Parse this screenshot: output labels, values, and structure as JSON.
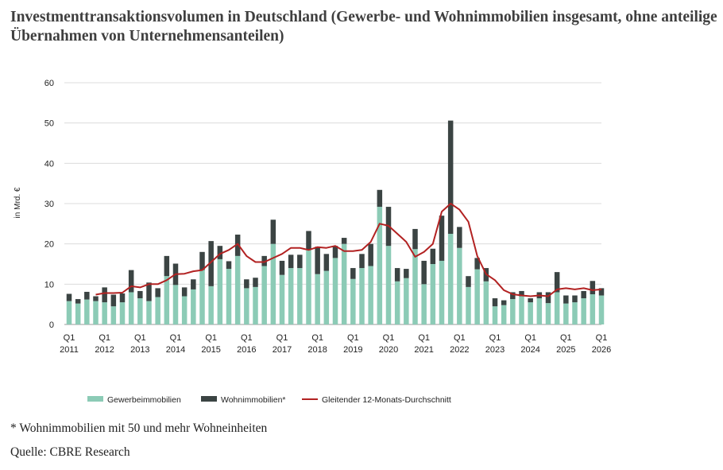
{
  "title": "Investmenttransaktionsvolumen in Deutschland (Gewerbe- und Wohnimmobilien insgesamt, ohne anteilige Übernahmen von Unternehmensanteilen)",
  "footnote": "* Wohnimmobilien mit 50 und mehr Wohneinheiten",
  "source": "Quelle: CBRE Research",
  "chart_data": {
    "type": "bar",
    "stacked": true,
    "ylabel": "in Mrd. €",
    "ylim": [
      0,
      60
    ],
    "yticks": [
      0,
      10,
      20,
      30,
      40,
      50,
      60
    ],
    "grid": true,
    "legend_position": "bottom",
    "colors": {
      "commercial": "#8ccbb6",
      "residential": "#3b4443",
      "average": "#b22222"
    },
    "x_tick_labels": [
      {
        "index": 0,
        "quarter": "Q1",
        "year": "2011"
      },
      {
        "index": 4,
        "quarter": "Q1",
        "year": "2012"
      },
      {
        "index": 8,
        "quarter": "Q1",
        "year": "2013"
      },
      {
        "index": 12,
        "quarter": "Q1",
        "year": "2014"
      },
      {
        "index": 16,
        "quarter": "Q1",
        "year": "2015"
      },
      {
        "index": 20,
        "quarter": "Q1",
        "year": "2016"
      },
      {
        "index": 24,
        "quarter": "Q1",
        "year": "2017"
      },
      {
        "index": 28,
        "quarter": "Q1",
        "year": "2018"
      },
      {
        "index": 32,
        "quarter": "Q1",
        "year": "2019"
      },
      {
        "index": 36,
        "quarter": "Q1",
        "year": "2020"
      },
      {
        "index": 40,
        "quarter": "Q1",
        "year": "2021"
      },
      {
        "index": 44,
        "quarter": "Q1",
        "year": "2022"
      },
      {
        "index": 48,
        "quarter": "Q1",
        "year": "2023"
      },
      {
        "index": 52,
        "quarter": "Q1",
        "year": "2024"
      },
      {
        "index": 56,
        "quarter": "Q1",
        "year": "2025"
      },
      {
        "index": 60,
        "quarter": "Q1",
        "year": "2026"
      }
    ],
    "series": [
      {
        "name": "Gewerbeimmobilien",
        "values": [
          5.8,
          5.2,
          6.2,
          5.8,
          5.5,
          4.5,
          5.5,
          8.0,
          6.5,
          5.8,
          6.8,
          12.0,
          9.8,
          7.0,
          8.7,
          13.5,
          9.5,
          16.2,
          13.8,
          17.0,
          9.0,
          9.3,
          14.5,
          20.0,
          12.3,
          14.0,
          14.0,
          18.5,
          12.5,
          13.3,
          16.5,
          20.0,
          11.3,
          14.0,
          14.5,
          29.2,
          19.5,
          10.7,
          11.5,
          18.7,
          10.0,
          15.0,
          15.8,
          22.5,
          19.0,
          9.3,
          13.7,
          10.7,
          4.5,
          4.8,
          6.3,
          7.0,
          5.5,
          6.5,
          5.3,
          8.0,
          5.2,
          5.5,
          6.5,
          7.5,
          7.2
        ]
      },
      {
        "name": "Wohnimmobilien*",
        "values": [
          1.8,
          1.1,
          1.9,
          1.2,
          3.7,
          2.9,
          2.2,
          5.5,
          1.8,
          4.6,
          2.2,
          5.0,
          5.3,
          2.2,
          2.5,
          4.5,
          11.2,
          3.3,
          1.9,
          5.3,
          2.2,
          2.3,
          2.5,
          6.0,
          3.5,
          3.3,
          3.3,
          4.7,
          6.8,
          4.2,
          3.0,
          1.5,
          2.7,
          3.5,
          5.5,
          4.2,
          9.7,
          3.3,
          2.3,
          5.0,
          5.8,
          3.8,
          11.2,
          28.1,
          5.2,
          2.7,
          2.8,
          3.3,
          2.0,
          1.2,
          1.7,
          1.3,
          1.0,
          1.5,
          2.7,
          5.0,
          2.0,
          1.7,
          1.8,
          3.3,
          1.8
        ]
      },
      {
        "name": "Gleitender 12-Monats-Durchschnitt",
        "type": "line",
        "values": [
          null,
          null,
          null,
          7.4,
          7.8,
          7.8,
          7.9,
          9.5,
          9.2,
          10.0,
          10.0,
          11.0,
          12.5,
          12.6,
          13.2,
          13.5,
          15.5,
          17.5,
          18.5,
          20.0,
          17.0,
          15.5,
          15.5,
          16.5,
          17.5,
          19.0,
          19.0,
          18.5,
          19.2,
          19.0,
          19.5,
          18.2,
          18.2,
          18.5,
          20.5,
          25.0,
          24.5,
          22.5,
          20.5,
          16.8,
          18.0,
          20.0,
          28.0,
          30.0,
          28.5,
          25.5,
          17.0,
          12.5,
          11.0,
          8.5,
          7.5,
          7.2,
          7.0,
          7.2,
          7.0,
          8.7,
          9.0,
          8.7,
          9.0,
          8.5,
          8.7
        ]
      }
    ]
  }
}
